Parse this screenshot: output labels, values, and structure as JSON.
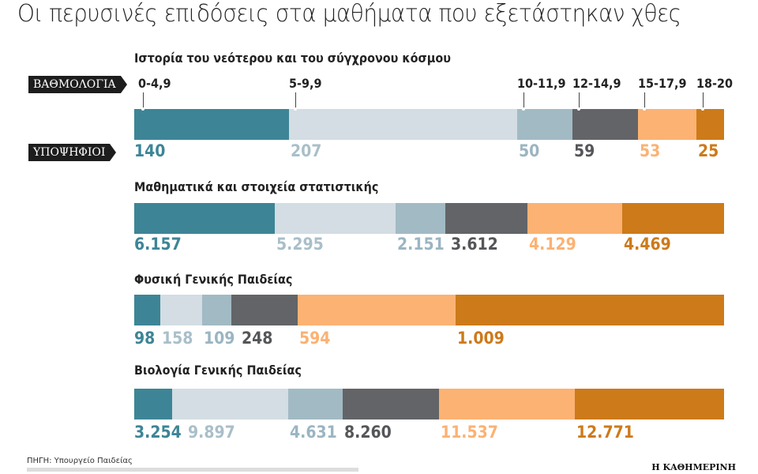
{
  "title": "Οι περυσινές επιδόσεις στα μαθήματα που εξετάστηκαν χθες",
  "legend_tags": {
    "grades": "ΒΑΘΜΟΛΟΓΙΑ",
    "candidates": "ΥΠΟΨΗΦΙΟΙ"
  },
  "source": "ΠΗΓΗ: Υπουργείο Παιδείας",
  "brand": "Η ΚΑΘΗΜΕΡΙΝΗ",
  "colors": [
    "#3d8596",
    "#d3dde3",
    "#a2bac4",
    "#636467",
    "#fbb273",
    "#cd7a1a"
  ],
  "label_colors": [
    "#3d8596",
    "#a9bfc9",
    "#9bb5c2",
    "#555659",
    "#fbb273",
    "#cd7a1a"
  ],
  "chart_data": {
    "type": "bar",
    "orientation": "horizontal-stacked-100",
    "categories": [
      "0-4,9",
      "5-9,9",
      "10-11,9",
      "12-14,9",
      "15-17,9",
      "18-20"
    ],
    "series": [
      {
        "name": "Ιστορία του νεότερου και του σύγχρονου κόσμου",
        "values": [
          140,
          207,
          50,
          59,
          53,
          25
        ],
        "labels": [
          "140",
          "207",
          "50",
          "59",
          "53",
          "25"
        ]
      },
      {
        "name": "Μαθηματικά και στοιχεία στατιστικής",
        "values": [
          6157,
          5295,
          2151,
          3612,
          4129,
          4469
        ],
        "labels": [
          "6.157",
          "5.295",
          "2.151",
          "3.612",
          "4.129",
          "4.469"
        ]
      },
      {
        "name": "Φυσική Γενικής Παιδείας",
        "values": [
          98,
          158,
          109,
          248,
          594,
          1009
        ],
        "labels": [
          "98",
          "158",
          "109",
          "248",
          "594",
          "1.009"
        ]
      },
      {
        "name": "Βιολογία Γενικής Παιδείας",
        "values": [
          3254,
          9897,
          4631,
          8260,
          11537,
          12771
        ],
        "labels": [
          "3.254",
          "9.897",
          "4.631",
          "8.260",
          "11.537",
          "12.771"
        ]
      }
    ]
  }
}
